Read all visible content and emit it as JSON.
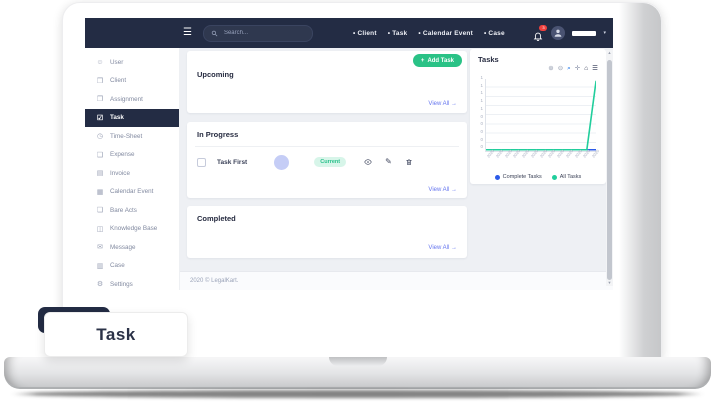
{
  "feature_label": "Task",
  "navbar": {
    "menu_icon": "☰",
    "search_placeholder": "Search...",
    "links": [
      {
        "name": "nav-link-client",
        "label": "• Client"
      },
      {
        "name": "nav-link-task",
        "label": "• Task"
      },
      {
        "name": "nav-link-calendar-event",
        "label": "• Calendar Event"
      },
      {
        "name": "nav-link-case",
        "label": "• Case"
      }
    ],
    "notification_badge": "3",
    "profile_caret": "▾"
  },
  "sidebar": {
    "items": [
      {
        "name": "sidebar-item-user",
        "label": "User",
        "icon": "☺"
      },
      {
        "name": "sidebar-item-client",
        "label": "Client",
        "icon": "❒"
      },
      {
        "name": "sidebar-item-assignment",
        "label": "Assignment",
        "icon": "❐"
      },
      {
        "name": "sidebar-item-task",
        "label": "Task",
        "icon": "☑",
        "active": true
      },
      {
        "name": "sidebar-item-time-sheet",
        "label": "Time-Sheet",
        "icon": "◷"
      },
      {
        "name": "sidebar-item-expense",
        "label": "Expense",
        "icon": "❑"
      },
      {
        "name": "sidebar-item-invoice",
        "label": "Invoice",
        "icon": "▤"
      },
      {
        "name": "sidebar-item-calendar-event",
        "label": "Calendar Event",
        "icon": "▦"
      },
      {
        "name": "sidebar-item-bare-acts",
        "label": "Bare Acts",
        "icon": "❏"
      },
      {
        "name": "sidebar-item-knowledge-base",
        "label": "Knowledge Base",
        "icon": "◫"
      },
      {
        "name": "sidebar-item-message",
        "label": "Message",
        "icon": "✉"
      },
      {
        "name": "sidebar-item-case",
        "label": "Case",
        "icon": "▥"
      },
      {
        "name": "sidebar-item-settings",
        "label": "Settings",
        "icon": "⚙"
      }
    ]
  },
  "main": {
    "add_task": {
      "icon": "+",
      "label": "Add Task"
    },
    "upcoming": {
      "title": "Upcoming",
      "view_all": "View All →"
    },
    "in_progress": {
      "title": "In Progress",
      "view_all": "View All →",
      "task": {
        "title": "Task First",
        "status": "Current"
      }
    },
    "completed": {
      "title": "Completed",
      "view_all": "View All →"
    },
    "footer": "2020 © LegalKart."
  },
  "tasks_panel": {
    "title": "Tasks",
    "toolbar": [
      {
        "name": "chart-zoom-in-icon",
        "glyph": "⊕",
        "color": "#99a1b3"
      },
      {
        "name": "chart-zoom-out-icon",
        "glyph": "⊖",
        "color": "#99a1b3"
      },
      {
        "name": "chart-selection-zoom-icon",
        "glyph": "⌕",
        "color": "#1a73e8"
      },
      {
        "name": "chart-pan-icon",
        "glyph": "✛",
        "color": "#8e96ac"
      },
      {
        "name": "chart-reset-home-icon",
        "glyph": "⌂",
        "color": "#2b3350"
      },
      {
        "name": "chart-menu-icon",
        "glyph": "☰",
        "color": "#2b3350"
      }
    ],
    "legend": [
      {
        "name": "legend-complete-tasks",
        "label": "Complete Tasks",
        "color": "#2c5be8"
      },
      {
        "name": "legend-all-tasks",
        "label": "All Tasks",
        "color": "#21ce9c"
      }
    ],
    "chart_data": {
      "type": "line",
      "title": "Tasks",
      "x_labels": [
        "2020",
        "2020",
        "2020",
        "2020",
        "2020",
        "2020",
        "2020",
        "2020",
        "2020",
        "2020",
        "2020",
        "2020",
        "2020"
      ],
      "y_tick_labels": [
        "1",
        "1",
        "1",
        "1",
        "1",
        "0",
        "0",
        "0",
        "0",
        "0"
      ],
      "ylim": [
        0,
        1
      ],
      "grid": true,
      "legend_position": "bottom",
      "series": [
        {
          "name": "Complete Tasks",
          "color": "#2c5be8",
          "values": [
            0,
            0,
            0,
            0,
            0,
            0,
            0,
            0,
            0,
            0,
            0,
            0,
            0
          ]
        },
        {
          "name": "All Tasks",
          "color": "#21ce9c",
          "values": [
            0,
            0,
            0,
            0,
            0,
            0,
            0,
            0,
            0,
            0,
            0,
            0,
            1
          ]
        }
      ]
    }
  },
  "colors": {
    "navbar_bg": "#232c44",
    "accent_green": "#2ac286",
    "link": "#6777ef",
    "content_bg": "#eef0f4",
    "badge_bg": "#d7f5e9"
  }
}
